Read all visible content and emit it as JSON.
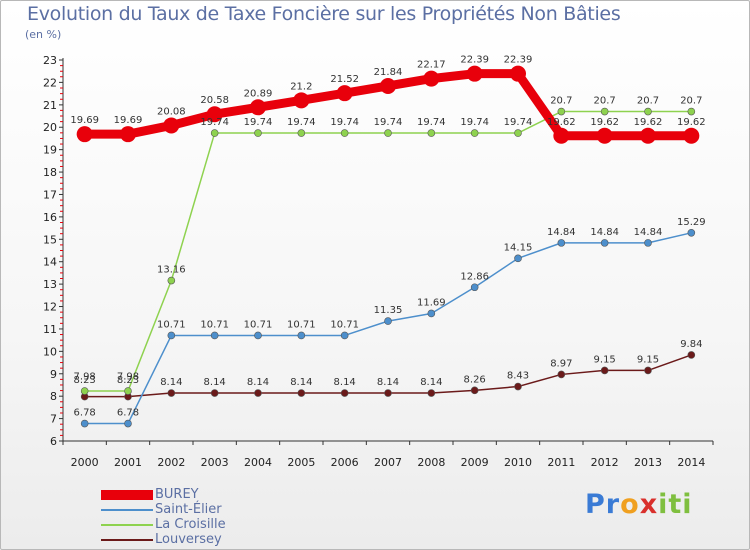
{
  "header": {
    "title": "Evolution du Taux de Taxe Foncière sur les Propriétés Non Bâties",
    "unit": "(en %)"
  },
  "logo": {
    "letters": [
      "P",
      "r",
      "o",
      "x",
      "i",
      "t",
      "i"
    ],
    "colors": [
      "#3a7bd5",
      "#3a7bd5",
      "#f0a020",
      "#d9302c",
      "#7fbf3f",
      "#7fbf3f",
      "#7fbf3f"
    ]
  },
  "chart_data": {
    "type": "line",
    "title": "Evolution du Taux de Taxe Foncière sur les Propriétés Non Bâties",
    "ylabel": "(en %)",
    "xlabel": "",
    "ylim": [
      6,
      23
    ],
    "grid": false,
    "categories": [
      "2000",
      "2001",
      "2002",
      "2003",
      "2004",
      "2005",
      "2006",
      "2007",
      "2008",
      "2009",
      "2010",
      "2011",
      "2012",
      "2013",
      "2014"
    ],
    "yticks": [
      "6",
      "7",
      "8",
      "9",
      "10",
      "11",
      "12",
      "13",
      "14",
      "15",
      "16",
      "17",
      "18",
      "19",
      "20",
      "21",
      "22",
      "23"
    ],
    "series": [
      {
        "name": "BUREY",
        "color": "#e8000b",
        "values": [
          19.69,
          19.69,
          20.08,
          20.58,
          20.89,
          21.2,
          21.52,
          21.84,
          22.17,
          22.39,
          22.39,
          19.62,
          19.62,
          19.62,
          19.62
        ],
        "labels": [
          "19.69",
          "19.69",
          "20.08",
          "20.58",
          "20.89",
          "21.2",
          "21.52",
          "21.84",
          "22.17",
          "22.39",
          "22.39",
          "19.62",
          "19.62",
          "19.62",
          "19.62"
        ]
      },
      {
        "name": "Saint-Élier",
        "color": "#4d8fcc",
        "values": [
          6.78,
          6.78,
          10.71,
          10.71,
          10.71,
          10.71,
          10.71,
          11.35,
          11.69,
          12.86,
          14.15,
          14.84,
          14.84,
          14.84,
          15.29
        ],
        "labels": [
          "6.78",
          "6.78",
          "10.71",
          "10.71",
          "10.71",
          "10.71",
          "10.71",
          "11.35",
          "11.69",
          "12.86",
          "14.15",
          "14.84",
          "14.84",
          "14.84",
          "15.29"
        ]
      },
      {
        "name": "La Croisille",
        "color": "#8ed24f",
        "values": [
          8.23,
          8.23,
          13.16,
          19.74,
          19.74,
          19.74,
          19.74,
          19.74,
          19.74,
          19.74,
          19.74,
          20.7,
          20.7,
          20.7,
          20.7
        ],
        "labels": [
          "8.23",
          "8.23",
          "13.16",
          "19.74",
          "19.74",
          "19.74",
          "19.74",
          "19.74",
          "19.74",
          "19.74",
          "19.74",
          "20.7",
          "20.7",
          "20.7",
          "20.7"
        ]
      },
      {
        "name": "Louversey",
        "color": "#6b1a1a",
        "values": [
          7.98,
          7.98,
          8.14,
          8.14,
          8.14,
          8.14,
          8.14,
          8.14,
          8.14,
          8.26,
          8.43,
          8.97,
          9.15,
          9.15,
          9.84
        ],
        "labels": [
          "7.98",
          "7.98",
          "8.14",
          "8.14",
          "8.14",
          "8.14",
          "8.14",
          "8.14",
          "8.14",
          "8.26",
          "8.43",
          "8.97",
          "9.15",
          "9.15",
          "9.84"
        ]
      }
    ]
  }
}
